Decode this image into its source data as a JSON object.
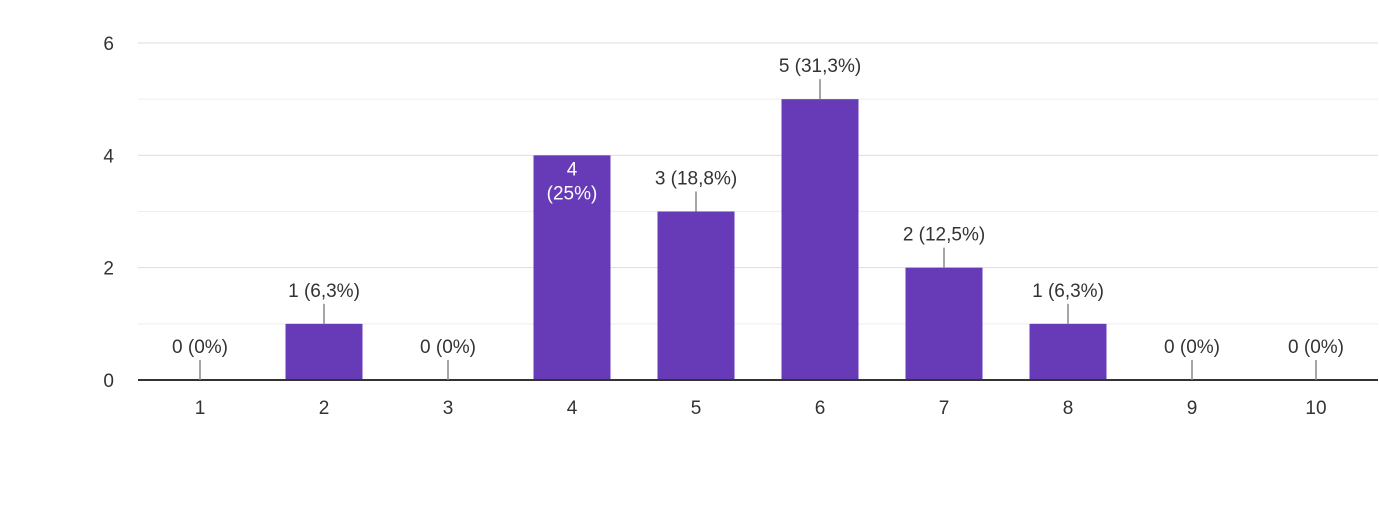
{
  "chart_data": {
    "type": "bar",
    "categories": [
      "1",
      "2",
      "3",
      "4",
      "5",
      "6",
      "7",
      "8",
      "9",
      "10"
    ],
    "values": [
      0,
      1,
      0,
      4,
      3,
      5,
      2,
      1,
      0,
      0
    ],
    "data_labels": [
      "0 (0%)",
      "1 (6,3%)",
      "0 (0%)",
      "4 (25%)",
      "3 (18,8%)",
      "5 (31,3%)",
      "2 (12,5%)",
      "1 (6,3%)",
      "0 (0%)",
      "0 (0%)"
    ],
    "y_ticks": [
      "0",
      "2",
      "4",
      "6"
    ],
    "ylim": [
      0,
      6
    ],
    "grid": true,
    "bar_color": "#673ab7"
  }
}
